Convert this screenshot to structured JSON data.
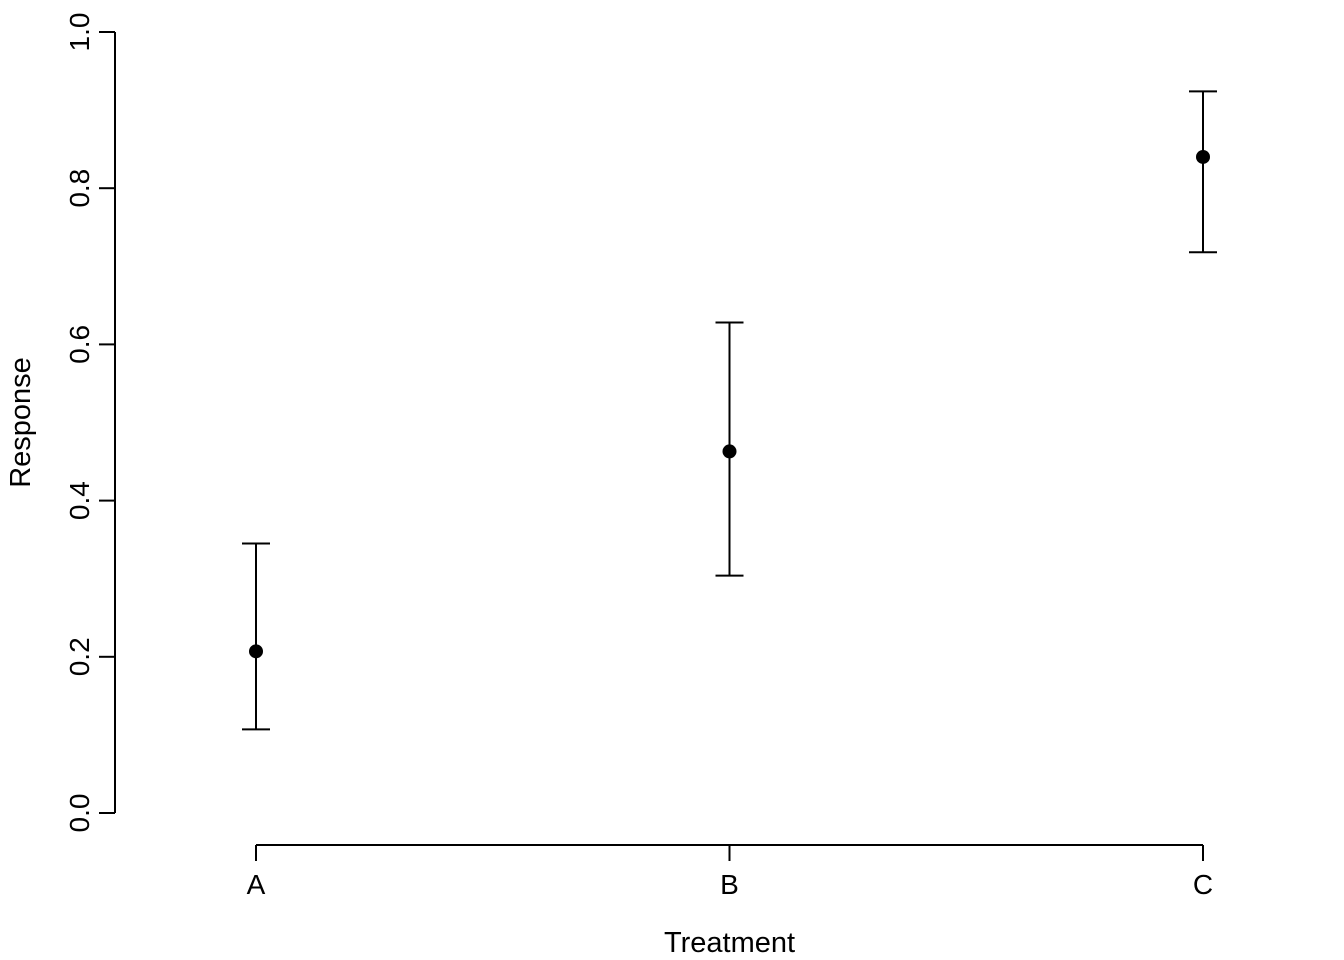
{
  "chart_data": {
    "type": "scatter",
    "title": "",
    "xlabel": "Treatment",
    "ylabel": "Response",
    "categories": [
      "A",
      "B",
      "C"
    ],
    "values": [
      0.207,
      0.463,
      0.84
    ],
    "error_low": [
      0.107,
      0.304,
      0.718
    ],
    "error_high": [
      0.345,
      0.628,
      0.924
    ],
    "ylim": [
      0.0,
      1.0
    ],
    "yticks": [
      0.0,
      0.2,
      0.4,
      0.6,
      0.8,
      1.0
    ],
    "ytick_labels": [
      "0.0",
      "0.2",
      "0.4",
      "0.6",
      "0.8",
      "1.0"
    ],
    "grid": false,
    "color": "#000000"
  }
}
